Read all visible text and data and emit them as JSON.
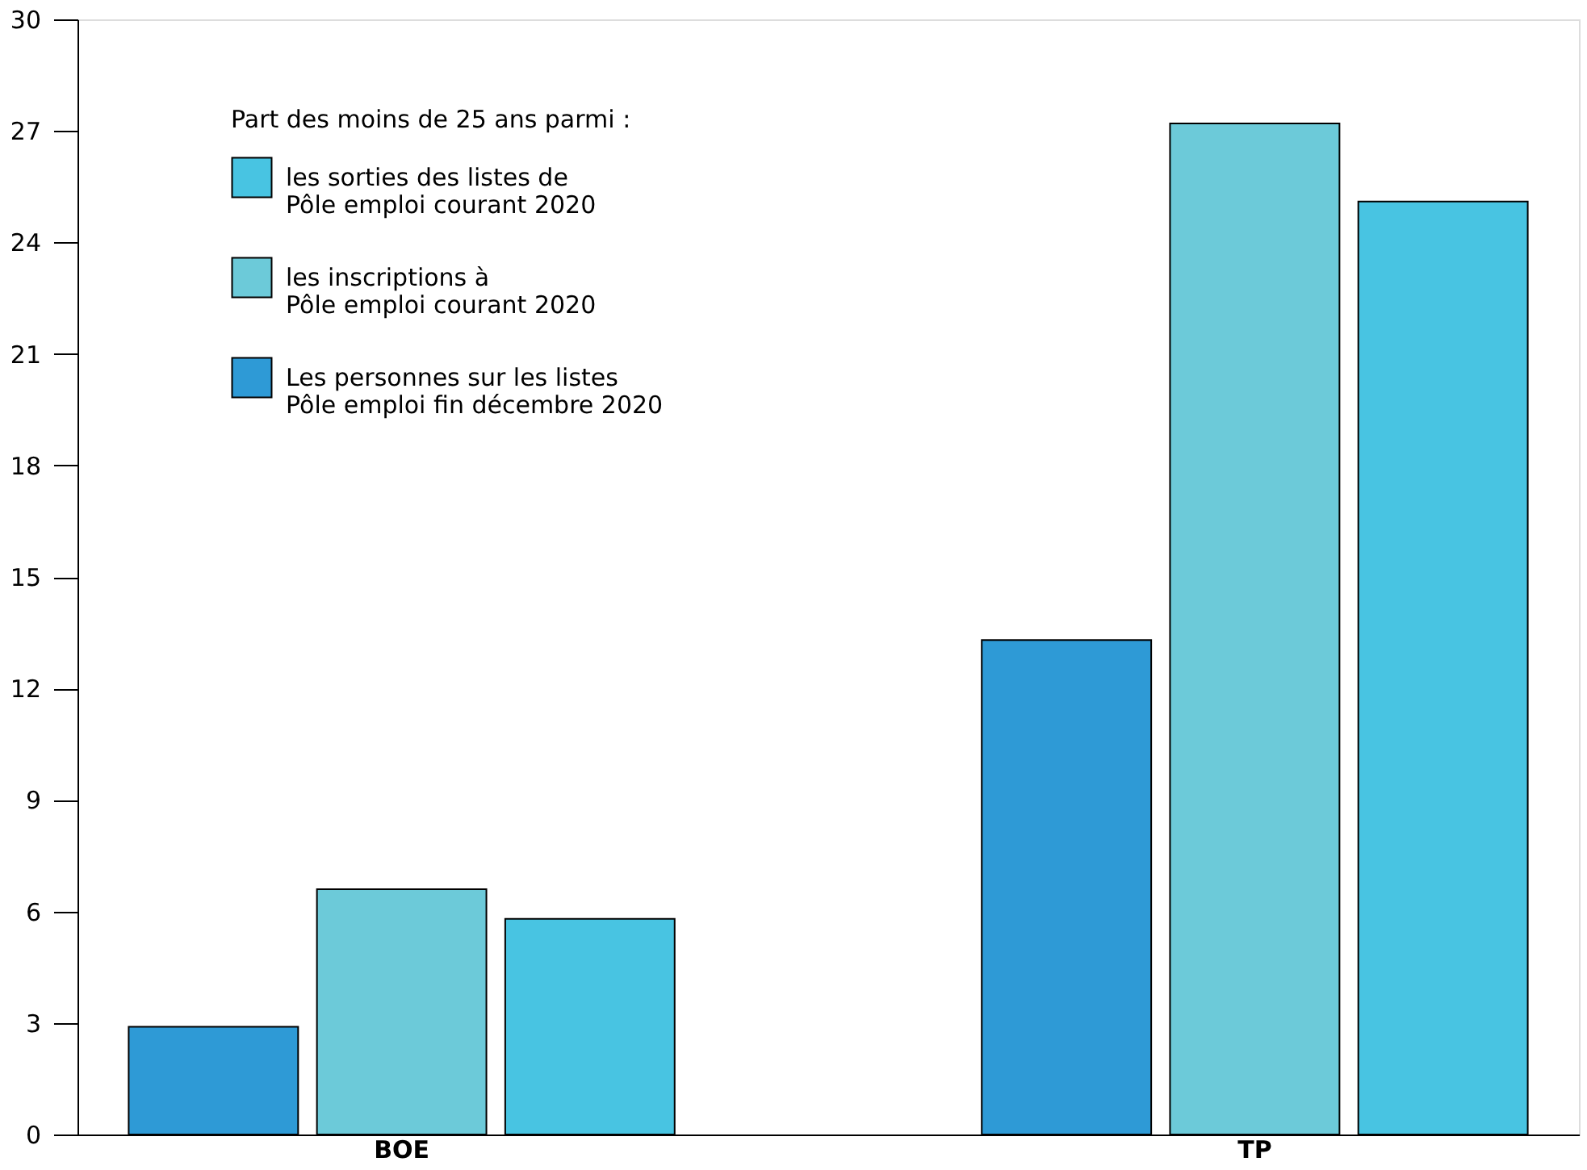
{
  "chart_data": {
    "type": "bar",
    "categories": [
      "BOE",
      "TP"
    ],
    "series": [
      {
        "name": "Les personnes sur les listes\nPôle emploi fin décembre 2020",
        "color": "#2e9ad6",
        "values": [
          2.9,
          13.3
        ]
      },
      {
        "name": "les inscriptions à\nPôle emploi courant 2020",
        "color": "#6ccad9",
        "values": [
          6.6,
          27.2
        ]
      },
      {
        "name": "les sorties des listes de\nPôle emploi courant 2020",
        "color": "#48c4e2",
        "values": [
          5.8,
          25.1
        ]
      }
    ],
    "legend_title": "Part des moins de 25 ans parmi :",
    "legend": "top left",
    "ylim": [
      0,
      30
    ],
    "yticks": [
      0,
      3,
      6,
      9,
      12,
      15,
      18,
      21,
      24,
      27,
      30
    ],
    "grid": false
  }
}
